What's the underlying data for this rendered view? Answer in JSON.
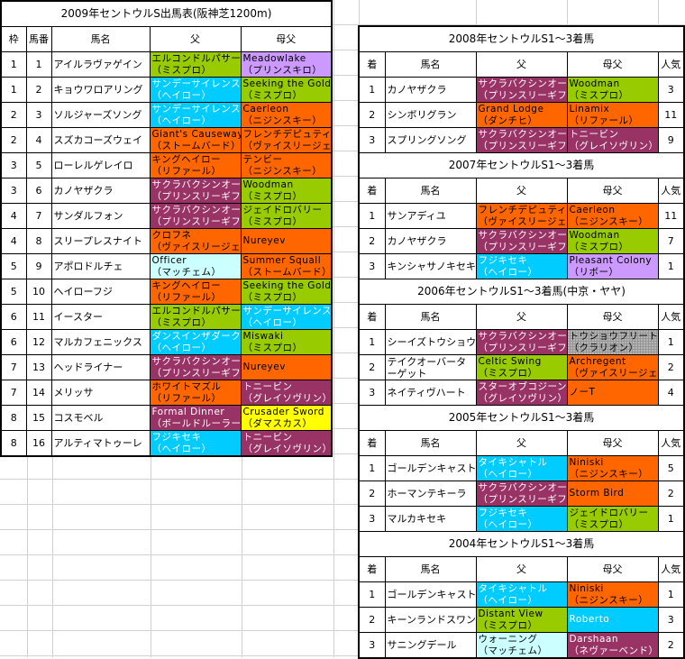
{
  "colors": {
    "green": "#99cc00",
    "blue": "#00ccff",
    "orange": "#ff6600",
    "maroon": "#993366",
    "lavender": "#cc99ff",
    "cyan": "#ccffff",
    "yellow": "#ffff00",
    "gray": "#969696"
  },
  "left": {
    "title": "2009年セントウルS出馬表(阪神芝1200m)",
    "headers": [
      "枠",
      "馬番",
      "馬名",
      "父",
      "母父"
    ],
    "rows": [
      {
        "waku": "1",
        "num": "1",
        "name": "アイルラヴァゲイン",
        "sire": {
          "name": "エルコンドルパサー",
          "line": "（ミスプロ）",
          "color": "green"
        },
        "dam_sire": {
          "name": "Meadowlake",
          "line": "（プリンスキロ）",
          "color": "lavender"
        }
      },
      {
        "waku": "1",
        "num": "2",
        "name": "キョウワロアリング",
        "sire": {
          "name": "サンデーサイレンス",
          "line": "（ヘイロー）",
          "color": "blue"
        },
        "dam_sire": {
          "name": "Seeking the Gold",
          "line": "（ミスプロ）",
          "color": "green"
        }
      },
      {
        "waku": "2",
        "num": "3",
        "name": "ソルジャーズソング",
        "sire": {
          "name": "サンデーサイレンス",
          "line": "（ヘイロー）",
          "color": "blue"
        },
        "dam_sire": {
          "name": "Caerleon",
          "line": "（ニジンスキー）",
          "color": "orange"
        }
      },
      {
        "waku": "2",
        "num": "4",
        "name": "スズカコーズウェイ",
        "sire": {
          "name": "Giant's Causeway",
          "line": "（ストームバード）",
          "color": "orange"
        },
        "dam_sire": {
          "name": "フレンチデピュティ",
          "line": "（ヴァイスリージェ）",
          "color": "orange"
        }
      },
      {
        "waku": "3",
        "num": "5",
        "name": "ローレルゲレイロ",
        "sire": {
          "name": "キングヘイロー",
          "line": "（リファール）",
          "color": "orange"
        },
        "dam_sire": {
          "name": "テンビー",
          "line": "（ニジンスキー）",
          "color": "orange"
        }
      },
      {
        "waku": "3",
        "num": "6",
        "name": "カノヤザクラ",
        "sire": {
          "name": "サクラバクシンオー",
          "line": "（プリンスリーギフ）",
          "color": "maroon"
        },
        "dam_sire": {
          "name": "Woodman",
          "line": "（ミスプロ）",
          "color": "green"
        }
      },
      {
        "waku": "4",
        "num": "7",
        "name": "サンダルフォン",
        "sire": {
          "name": "サクラバクシンオー",
          "line": "（プリンスリーギフ）",
          "color": "maroon"
        },
        "dam_sire": {
          "name": "ジェイドロバリー",
          "line": "（ミスプロ）",
          "color": "green"
        }
      },
      {
        "waku": "4",
        "num": "8",
        "name": "スリープレスナイト",
        "sire": {
          "name": "クロフネ",
          "line": "（ヴァイスリージェ）",
          "color": "orange"
        },
        "dam_sire": {
          "name": "Nureyev",
          "line": "",
          "color": "orange"
        }
      },
      {
        "waku": "5",
        "num": "9",
        "name": "アポロドルチェ",
        "sire": {
          "name": "Officer",
          "line": "（マッチェム）",
          "color": "cyan"
        },
        "dam_sire": {
          "name": "Summer Squall",
          "line": "（ストームバード）",
          "color": "orange"
        }
      },
      {
        "waku": "5",
        "num": "10",
        "name": "ヘイローフジ",
        "sire": {
          "name": "キングヘイロー",
          "line": "（リファール）",
          "color": "orange"
        },
        "dam_sire": {
          "name": "Seeking the Gold",
          "line": "（ミスプロ）",
          "color": "green"
        }
      },
      {
        "waku": "6",
        "num": "11",
        "name": "イースター",
        "sire": {
          "name": "エルコンドルパサー",
          "line": "（ミスプロ）",
          "color": "green"
        },
        "dam_sire": {
          "name": "サンデーサイレンス",
          "line": "（ヘイロー）",
          "color": "blue"
        }
      },
      {
        "waku": "6",
        "num": "12",
        "name": "マルカフェニックス",
        "sire": {
          "name": "ダンスインザダーク",
          "line": "（ヘイロー）",
          "color": "blue"
        },
        "dam_sire": {
          "name": "Miswaki",
          "line": "（ミスプロ）",
          "color": "green"
        }
      },
      {
        "waku": "7",
        "num": "13",
        "name": "ヘッドライナー",
        "sire": {
          "name": "サクラバクシンオー",
          "line": "（プリンスリーギフ）",
          "color": "maroon"
        },
        "dam_sire": {
          "name": "Nureyev",
          "line": "",
          "color": "orange"
        }
      },
      {
        "waku": "7",
        "num": "14",
        "name": "メリッサ",
        "sire": {
          "name": "ホワイトマズル",
          "line": "（リファール）",
          "color": "orange"
        },
        "dam_sire": {
          "name": "トニービン",
          "line": "（グレイソヴリン）",
          "color": "maroon"
        }
      },
      {
        "waku": "8",
        "num": "15",
        "name": "コスモベル",
        "sire": {
          "name": "Formal Dinner",
          "line": "（ボールドルーラー）",
          "color": "maroon"
        },
        "dam_sire": {
          "name": "Crusader Sword",
          "line": "（ダマスカス）",
          "color": "yellow"
        }
      },
      {
        "waku": "8",
        "num": "16",
        "name": "アルティマトゥーレ",
        "sire": {
          "name": "フジキセキ",
          "line": "（ヘイロー）",
          "color": "blue"
        },
        "dam_sire": {
          "name": "トニービン",
          "line": "（グレイソヴリン）",
          "color": "maroon"
        }
      }
    ]
  },
  "right": {
    "headers": [
      "着",
      "馬名",
      "父",
      "母父",
      "人気"
    ],
    "sections": [
      {
        "title": "2008年セントウルS1～3着馬",
        "rows": [
          {
            "rank": "1",
            "name": "カノヤザクラ",
            "sire": {
              "name": "サクラバクシンオー",
              "line": "（プリンスリーギフ）",
              "color": "maroon"
            },
            "dam_sire": {
              "name": "Woodman",
              "line": "（ミスプロ）",
              "color": "green"
            },
            "pop": "3"
          },
          {
            "rank": "2",
            "name": "シンボリグラン",
            "sire": {
              "name": "Grand Lodge",
              "line": "（ダンチヒ）",
              "color": "orange"
            },
            "dam_sire": {
              "name": "Linamix",
              "line": "（リファール）",
              "color": "orange"
            },
            "pop": "11"
          },
          {
            "rank": "3",
            "name": "スプリングソング",
            "sire": {
              "name": "サクラバクシンオー",
              "line": "（プリンスリーギフ）",
              "color": "maroon"
            },
            "dam_sire": {
              "name": "トニービン",
              "line": "（グレイソヴリン）",
              "color": "maroon"
            },
            "pop": "9"
          }
        ]
      },
      {
        "title": "2007年セントウルS1～3着馬",
        "rows": [
          {
            "rank": "1",
            "name": "サンアディユ",
            "sire": {
              "name": "フレンチデピュティ",
              "line": "（ヴァイスリージェ）",
              "color": "orange"
            },
            "dam_sire": {
              "name": "Caerleon",
              "line": "（ニジンスキー）",
              "color": "orange"
            },
            "pop": "11"
          },
          {
            "rank": "2",
            "name": "カノヤザクラ",
            "sire": {
              "name": "サクラバクシンオー",
              "line": "（プリンスリーギフ）",
              "color": "maroon"
            },
            "dam_sire": {
              "name": "Woodman",
              "line": "（ミスプロ）",
              "color": "green"
            },
            "pop": "7"
          },
          {
            "rank": "3",
            "name": "キンシャサノキセキ",
            "sire": {
              "name": "フジキセキ",
              "line": "（ヘイロー）",
              "color": "blue"
            },
            "dam_sire": {
              "name": "Pleasant Colony",
              "line": "（リボー）",
              "color": "lavender"
            },
            "pop": "1"
          }
        ]
      },
      {
        "title": "2006年セントウルS1～3着馬(中京・ヤヤ)",
        "rows": [
          {
            "rank": "1",
            "name": "シーイズトウショウ",
            "sire": {
              "name": "サクラバクシンオー",
              "line": "（プリンスリーギフ）",
              "color": "maroon"
            },
            "dam_sire": {
              "name": "トウショウフリート",
              "line": "（クラリオン）",
              "color": "gray"
            },
            "pop": "1"
          },
          {
            "rank": "2",
            "name": "テイクオーバーターゲット",
            "sire": {
              "name": "Celtic Swing",
              "line": "（ミスプロ）",
              "color": "green"
            },
            "dam_sire": {
              "name": "Archregent",
              "line": "（ヴァイスリージェ）",
              "color": "orange"
            },
            "pop": "2"
          },
          {
            "rank": "3",
            "name": "ネイティヴハート",
            "sire": {
              "name": "スターオブコジーン",
              "line": "（グレイソヴリン）",
              "color": "maroon"
            },
            "dam_sire": {
              "name": "ノーT",
              "line": "",
              "color": "orange"
            },
            "pop": "4"
          }
        ]
      },
      {
        "title": "2005年セントウルS1～3着馬",
        "rows": [
          {
            "rank": "1",
            "name": "ゴールデンキャスト",
            "sire": {
              "name": "タイキシャトル",
              "line": "（ヘイロー）",
              "color": "blue"
            },
            "dam_sire": {
              "name": "Niniski",
              "line": "（ニジンスキー）",
              "color": "orange"
            },
            "pop": "5"
          },
          {
            "rank": "2",
            "name": "ホーマンテキーラ",
            "sire": {
              "name": "サクラバクシンオー",
              "line": "（プリンスリーギフ）",
              "color": "maroon"
            },
            "dam_sire": {
              "name": "Storm Bird",
              "line": "",
              "color": "orange"
            },
            "pop": "2"
          },
          {
            "rank": "3",
            "name": "マルカキセキ",
            "sire": {
              "name": "フジキセキ",
              "line": "（ヘイロー）",
              "color": "blue"
            },
            "dam_sire": {
              "name": "ジェイドロバリー",
              "line": "（ミスプロ）",
              "color": "green"
            },
            "pop": "1"
          }
        ]
      },
      {
        "title": "2004年セントウルS1～3着馬",
        "rows": [
          {
            "rank": "1",
            "name": "ゴールデンキャスト",
            "sire": {
              "name": "タイキシャトル",
              "line": "（ヘイロー）",
              "color": "blue"
            },
            "dam_sire": {
              "name": "Niniski",
              "line": "（ニジンスキー）",
              "color": "orange"
            },
            "pop": "1"
          },
          {
            "rank": "2",
            "name": "キーンランドスワン",
            "sire": {
              "name": "Distant View",
              "line": "（ミスプロ）",
              "color": "green"
            },
            "dam_sire": {
              "name": "Roberto",
              "line": "",
              "color": "blue"
            },
            "pop": "3"
          },
          {
            "rank": "3",
            "name": "サニングデール",
            "sire": {
              "name": "ウォーニング",
              "line": "（マッチェム）",
              "color": "cyan"
            },
            "dam_sire": {
              "name": "Darshaan",
              "line": "（ネヴァーベンド）",
              "color": "maroon"
            },
            "pop": "2"
          }
        ]
      }
    ]
  }
}
